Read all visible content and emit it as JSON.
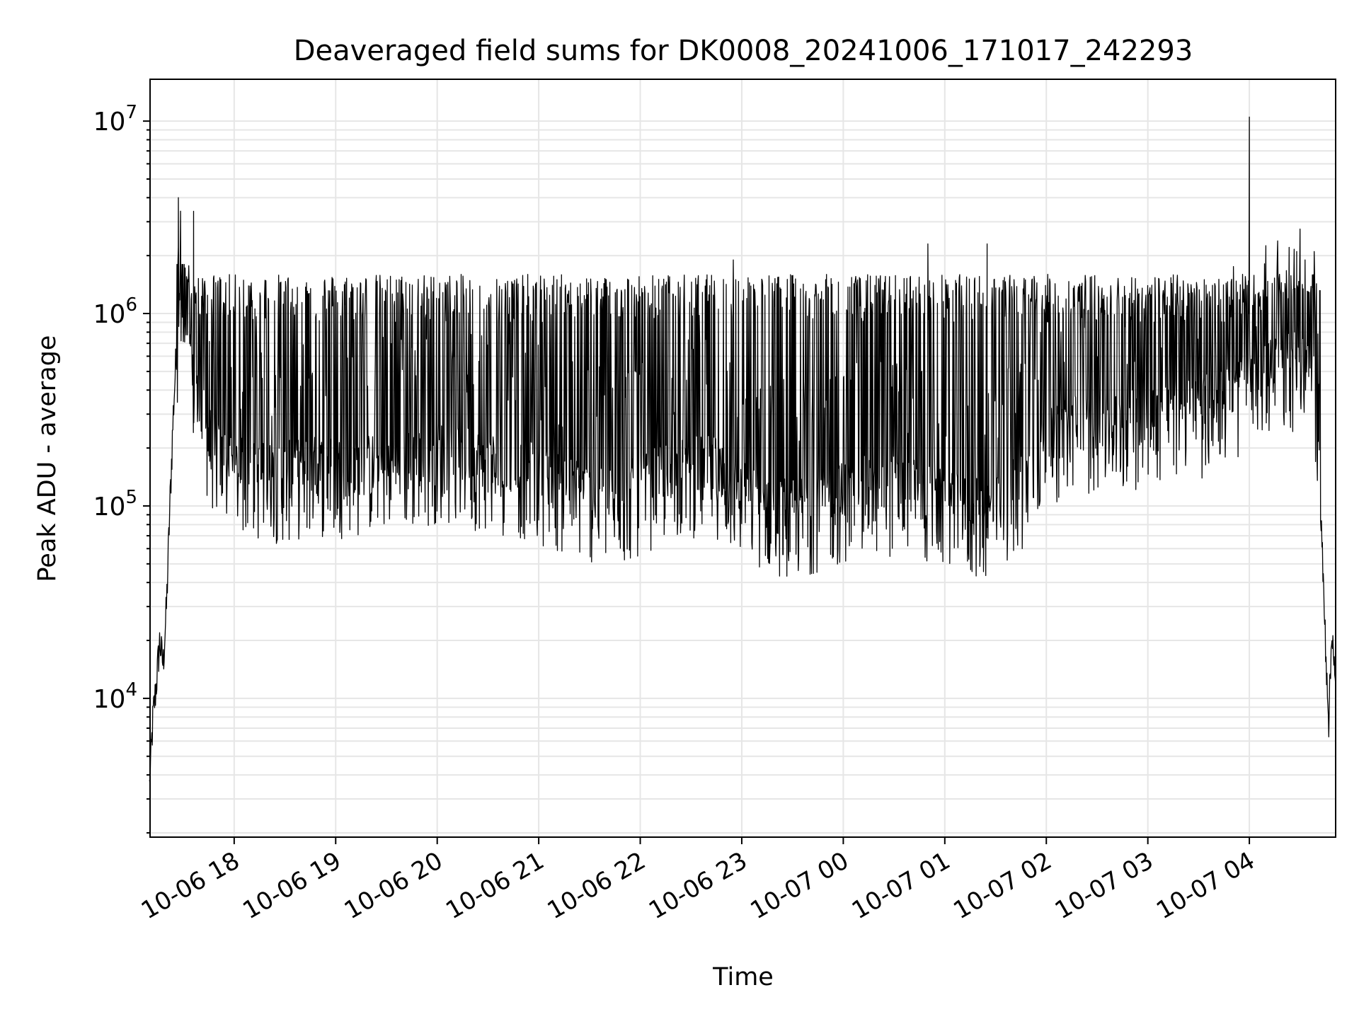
{
  "chart_data": {
    "type": "line",
    "title": "Deaveraged field sums for DK0008_20241006_171017_242293",
    "xlabel": "Time",
    "ylabel": "Peak ADU - average",
    "yscale": "log",
    "ylim": [
      1900,
      16500000
    ],
    "xlim": [
      "2024-10-06 17:10:17",
      "2024-10-07 04:51:00"
    ],
    "grid": true,
    "line_color": "#000000",
    "x_ticks": [
      {
        "value": "2024-10-06 18:00",
        "label": "10-06 18"
      },
      {
        "value": "2024-10-06 19:00",
        "label": "10-06 19"
      },
      {
        "value": "2024-10-06 20:00",
        "label": "10-06 20"
      },
      {
        "value": "2024-10-06 21:00",
        "label": "10-06 21"
      },
      {
        "value": "2024-10-06 22:00",
        "label": "10-06 22"
      },
      {
        "value": "2024-10-06 23:00",
        "label": "10-06 23"
      },
      {
        "value": "2024-10-07 00:00",
        "label": "10-07 00"
      },
      {
        "value": "2024-10-07 01:00",
        "label": "10-07 01"
      },
      {
        "value": "2024-10-07 02:00",
        "label": "10-07 02"
      },
      {
        "value": "2024-10-07 03:00",
        "label": "10-07 03"
      },
      {
        "value": "2024-10-07 04:00",
        "label": "10-07 04"
      }
    ],
    "y_ticks": [
      {
        "value": 10000,
        "base": "10",
        "exp": "4"
      },
      {
        "value": 100000,
        "base": "10",
        "exp": "5"
      },
      {
        "value": 1000000,
        "base": "10",
        "exp": "6"
      },
      {
        "value": 10000000,
        "base": "10",
        "exp": "7"
      }
    ],
    "series": [
      {
        "x": [
          "2024-10-06 17:10",
          "2024-10-06 17:12",
          "2024-10-06 17:14",
          "2024-10-06 17:16",
          "2024-10-06 17:18",
          "2024-10-06 17:20",
          "2024-10-06 17:22",
          "2024-10-06 17:24",
          "2024-10-06 17:26",
          "2024-10-06 17:28",
          "2024-10-06 17:30",
          "2024-10-06 17:32",
          "2024-10-06 17:34",
          "2024-10-06 17:36",
          "2024-10-06 17:38",
          "2024-10-06 17:40",
          "2024-10-06 17:45",
          "2024-10-06 17:50",
          "2024-10-06 17:55",
          "2024-10-06 18:00",
          "2024-10-06 18:15",
          "2024-10-06 18:30",
          "2024-10-06 18:45",
          "2024-10-06 19:00",
          "2024-10-06 19:15",
          "2024-10-06 19:30",
          "2024-10-06 19:45",
          "2024-10-06 20:00",
          "2024-10-06 20:15",
          "2024-10-06 20:30",
          "2024-10-06 20:45",
          "2024-10-06 21:00",
          "2024-10-06 21:15",
          "2024-10-06 21:30",
          "2024-10-06 21:45",
          "2024-10-06 22:00",
          "2024-10-06 22:15",
          "2024-10-06 22:30",
          "2024-10-06 22:45",
          "2024-10-06 23:00",
          "2024-10-06 23:15",
          "2024-10-06 23:30",
          "2024-10-06 23:45",
          "2024-10-07 00:00",
          "2024-10-07 00:15",
          "2024-10-07 00:30",
          "2024-10-07 00:45",
          "2024-10-07 01:00",
          "2024-10-07 01:15",
          "2024-10-07 01:30",
          "2024-10-07 01:45",
          "2024-10-07 02:00",
          "2024-10-07 02:15",
          "2024-10-07 02:30",
          "2024-10-07 02:45",
          "2024-10-07 03:00",
          "2024-10-07 03:15",
          "2024-10-07 03:30",
          "2024-10-07 03:45",
          "2024-10-07 04:00",
          "2024-10-07 04:15",
          "2024-10-07 04:30",
          "2024-10-07 04:38",
          "2024-10-07 04:42",
          "2024-10-07 04:45",
          "2024-10-07 04:47",
          "2024-10-07 04:49",
          "2024-10-07 04:51"
        ],
        "values": [
          3500,
          8000,
          12000,
          20000,
          15000,
          30000,
          100000,
          300000,
          700000,
          1000000,
          800000,
          600000,
          500000,
          400000,
          350000,
          300000,
          220000,
          180000,
          160000,
          150000,
          140000,
          140000,
          150000,
          150000,
          150000,
          160000,
          160000,
          180000,
          170000,
          160000,
          150000,
          140000,
          120000,
          110000,
          100000,
          120000,
          140000,
          150000,
          150000,
          110000,
          100000,
          90000,
          100000,
          110000,
          120000,
          120000,
          110000,
          100000,
          90000,
          90000,
          130000,
          200000,
          250000,
          250000,
          250000,
          280000,
          300000,
          300000,
          350000,
          400000,
          500000,
          550000,
          500000,
          100000,
          20000,
          8000,
          25000,
          10000
        ],
        "spike_min": 30000,
        "spike_max": 1800000,
        "outliers": [
          {
            "x": "2024-10-06 17:27",
            "value": 4000000
          },
          {
            "x": "2024-10-06 17:36",
            "value": 3400000
          },
          {
            "x": "2024-10-06 22:55",
            "value": 1900000
          },
          {
            "x": "2024-10-07 00:50",
            "value": 2300000
          },
          {
            "x": "2024-10-07 01:25",
            "value": 2300000
          },
          {
            "x": "2024-10-07 04:00",
            "value": 10500000
          },
          {
            "x": "2024-10-07 04:28",
            "value": 2100000
          }
        ]
      }
    ]
  }
}
